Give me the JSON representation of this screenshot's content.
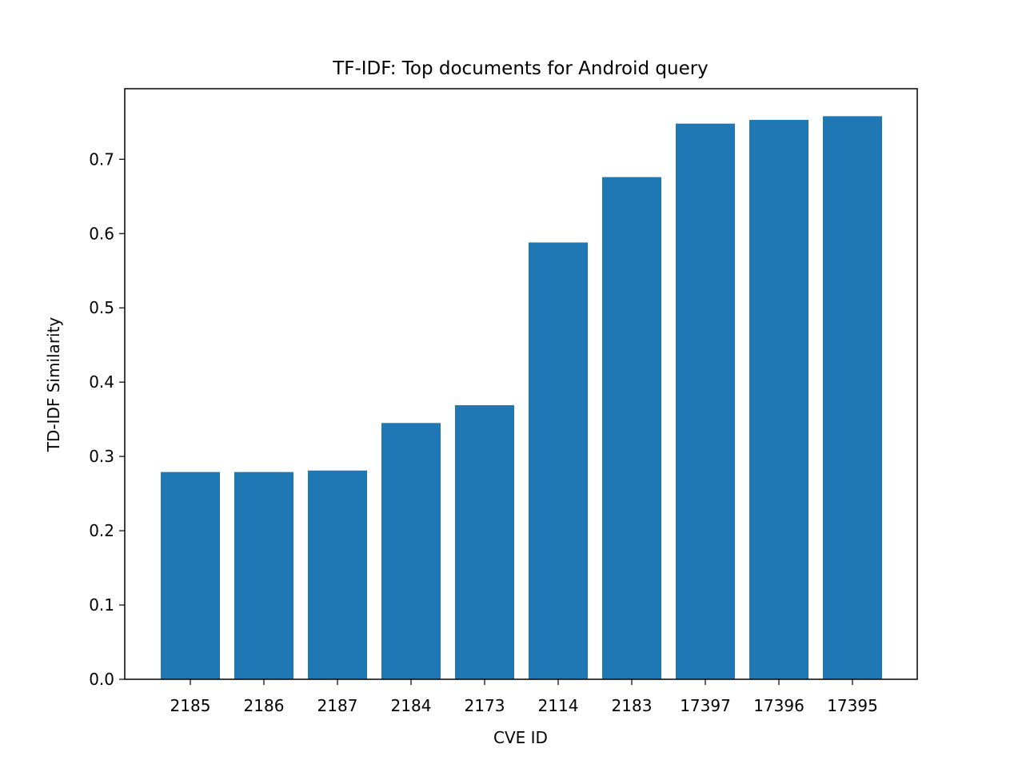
{
  "chart_data": {
    "type": "bar",
    "title": "TF-IDF: Top documents for Android query",
    "xlabel": "CVE ID",
    "ylabel": "TD-IDF Similarity",
    "categories": [
      "2185",
      "2186",
      "2187",
      "2184",
      "2173",
      "2114",
      "2183",
      "17397",
      "17396",
      "17395"
    ],
    "values": [
      0.279,
      0.279,
      0.281,
      0.345,
      0.369,
      0.588,
      0.676,
      0.748,
      0.753,
      0.758
    ],
    "ylim": [
      0,
      0.795
    ],
    "yticks": [
      "0.0",
      "0.1",
      "0.2",
      "0.3",
      "0.4",
      "0.5",
      "0.6",
      "0.7"
    ],
    "grid": false,
    "bar_color": "#1f77b4"
  }
}
